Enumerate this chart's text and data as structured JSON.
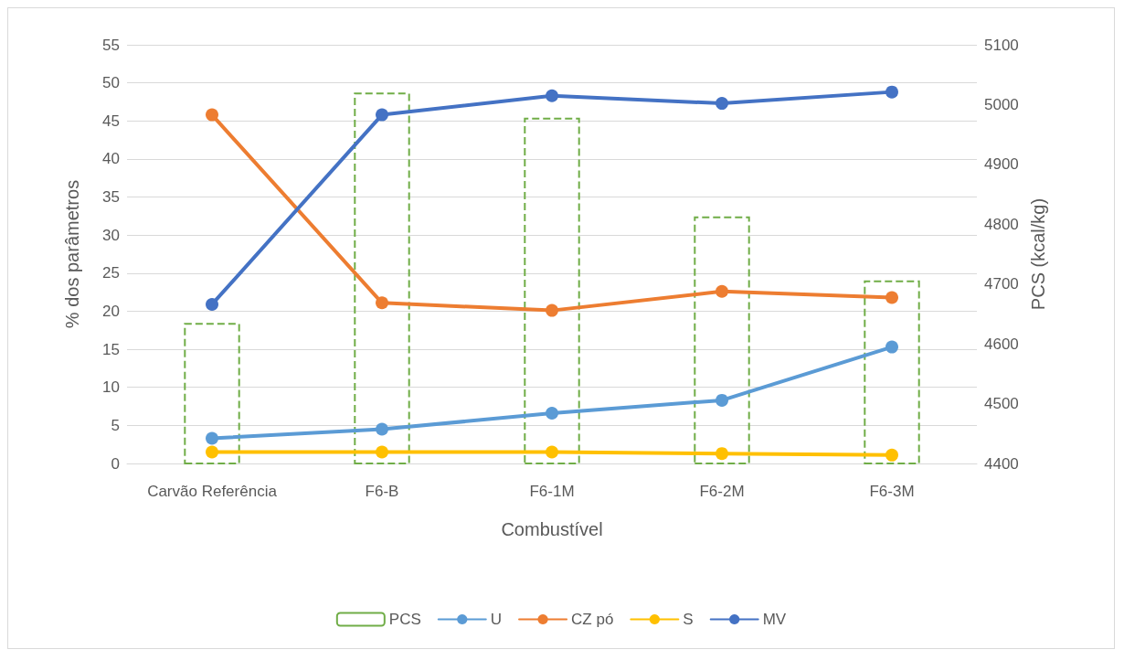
{
  "chart_data": {
    "type": "line",
    "xlabel": "Combustível",
    "ylabel": "% dos parâmetros",
    "y2label": "PCS (kcal/kg)",
    "categories": [
      "Carvão Referência",
      "F6-B",
      "F6-1M",
      "F6-2M",
      "F6-3M"
    ],
    "series": [
      {
        "name": "PCS",
        "type": "bar",
        "axis": "y2",
        "color": "#70ad47",
        "line_style": "dashed",
        "values": [
          4635,
          5020,
          4978,
          4813,
          4706
        ]
      },
      {
        "name": "U",
        "color": "#5b9bd5",
        "values": [
          3.3,
          4.5,
          6.6,
          8.3,
          15.3
        ]
      },
      {
        "name": "CZ pó",
        "color": "#ed7d31",
        "values": [
          45.8,
          21.1,
          20.1,
          22.6,
          21.8
        ]
      },
      {
        "name": "S",
        "color": "#ffc000",
        "values": [
          1.5,
          1.5,
          1.5,
          1.3,
          1.1
        ]
      },
      {
        "name": "MV",
        "color": "#4472c4",
        "values": [
          20.9,
          45.8,
          48.3,
          47.3,
          48.8
        ]
      }
    ],
    "ylim": [
      0,
      55
    ],
    "yticks": [
      0,
      5,
      10,
      15,
      20,
      25,
      30,
      35,
      40,
      45,
      50,
      55
    ],
    "y2lim": [
      4400,
      5100
    ],
    "y2ticks": [
      4400,
      4500,
      4600,
      4700,
      4800,
      4900,
      5000,
      5100
    ],
    "grid": "y",
    "legend": "bottom",
    "marker": "circle"
  }
}
